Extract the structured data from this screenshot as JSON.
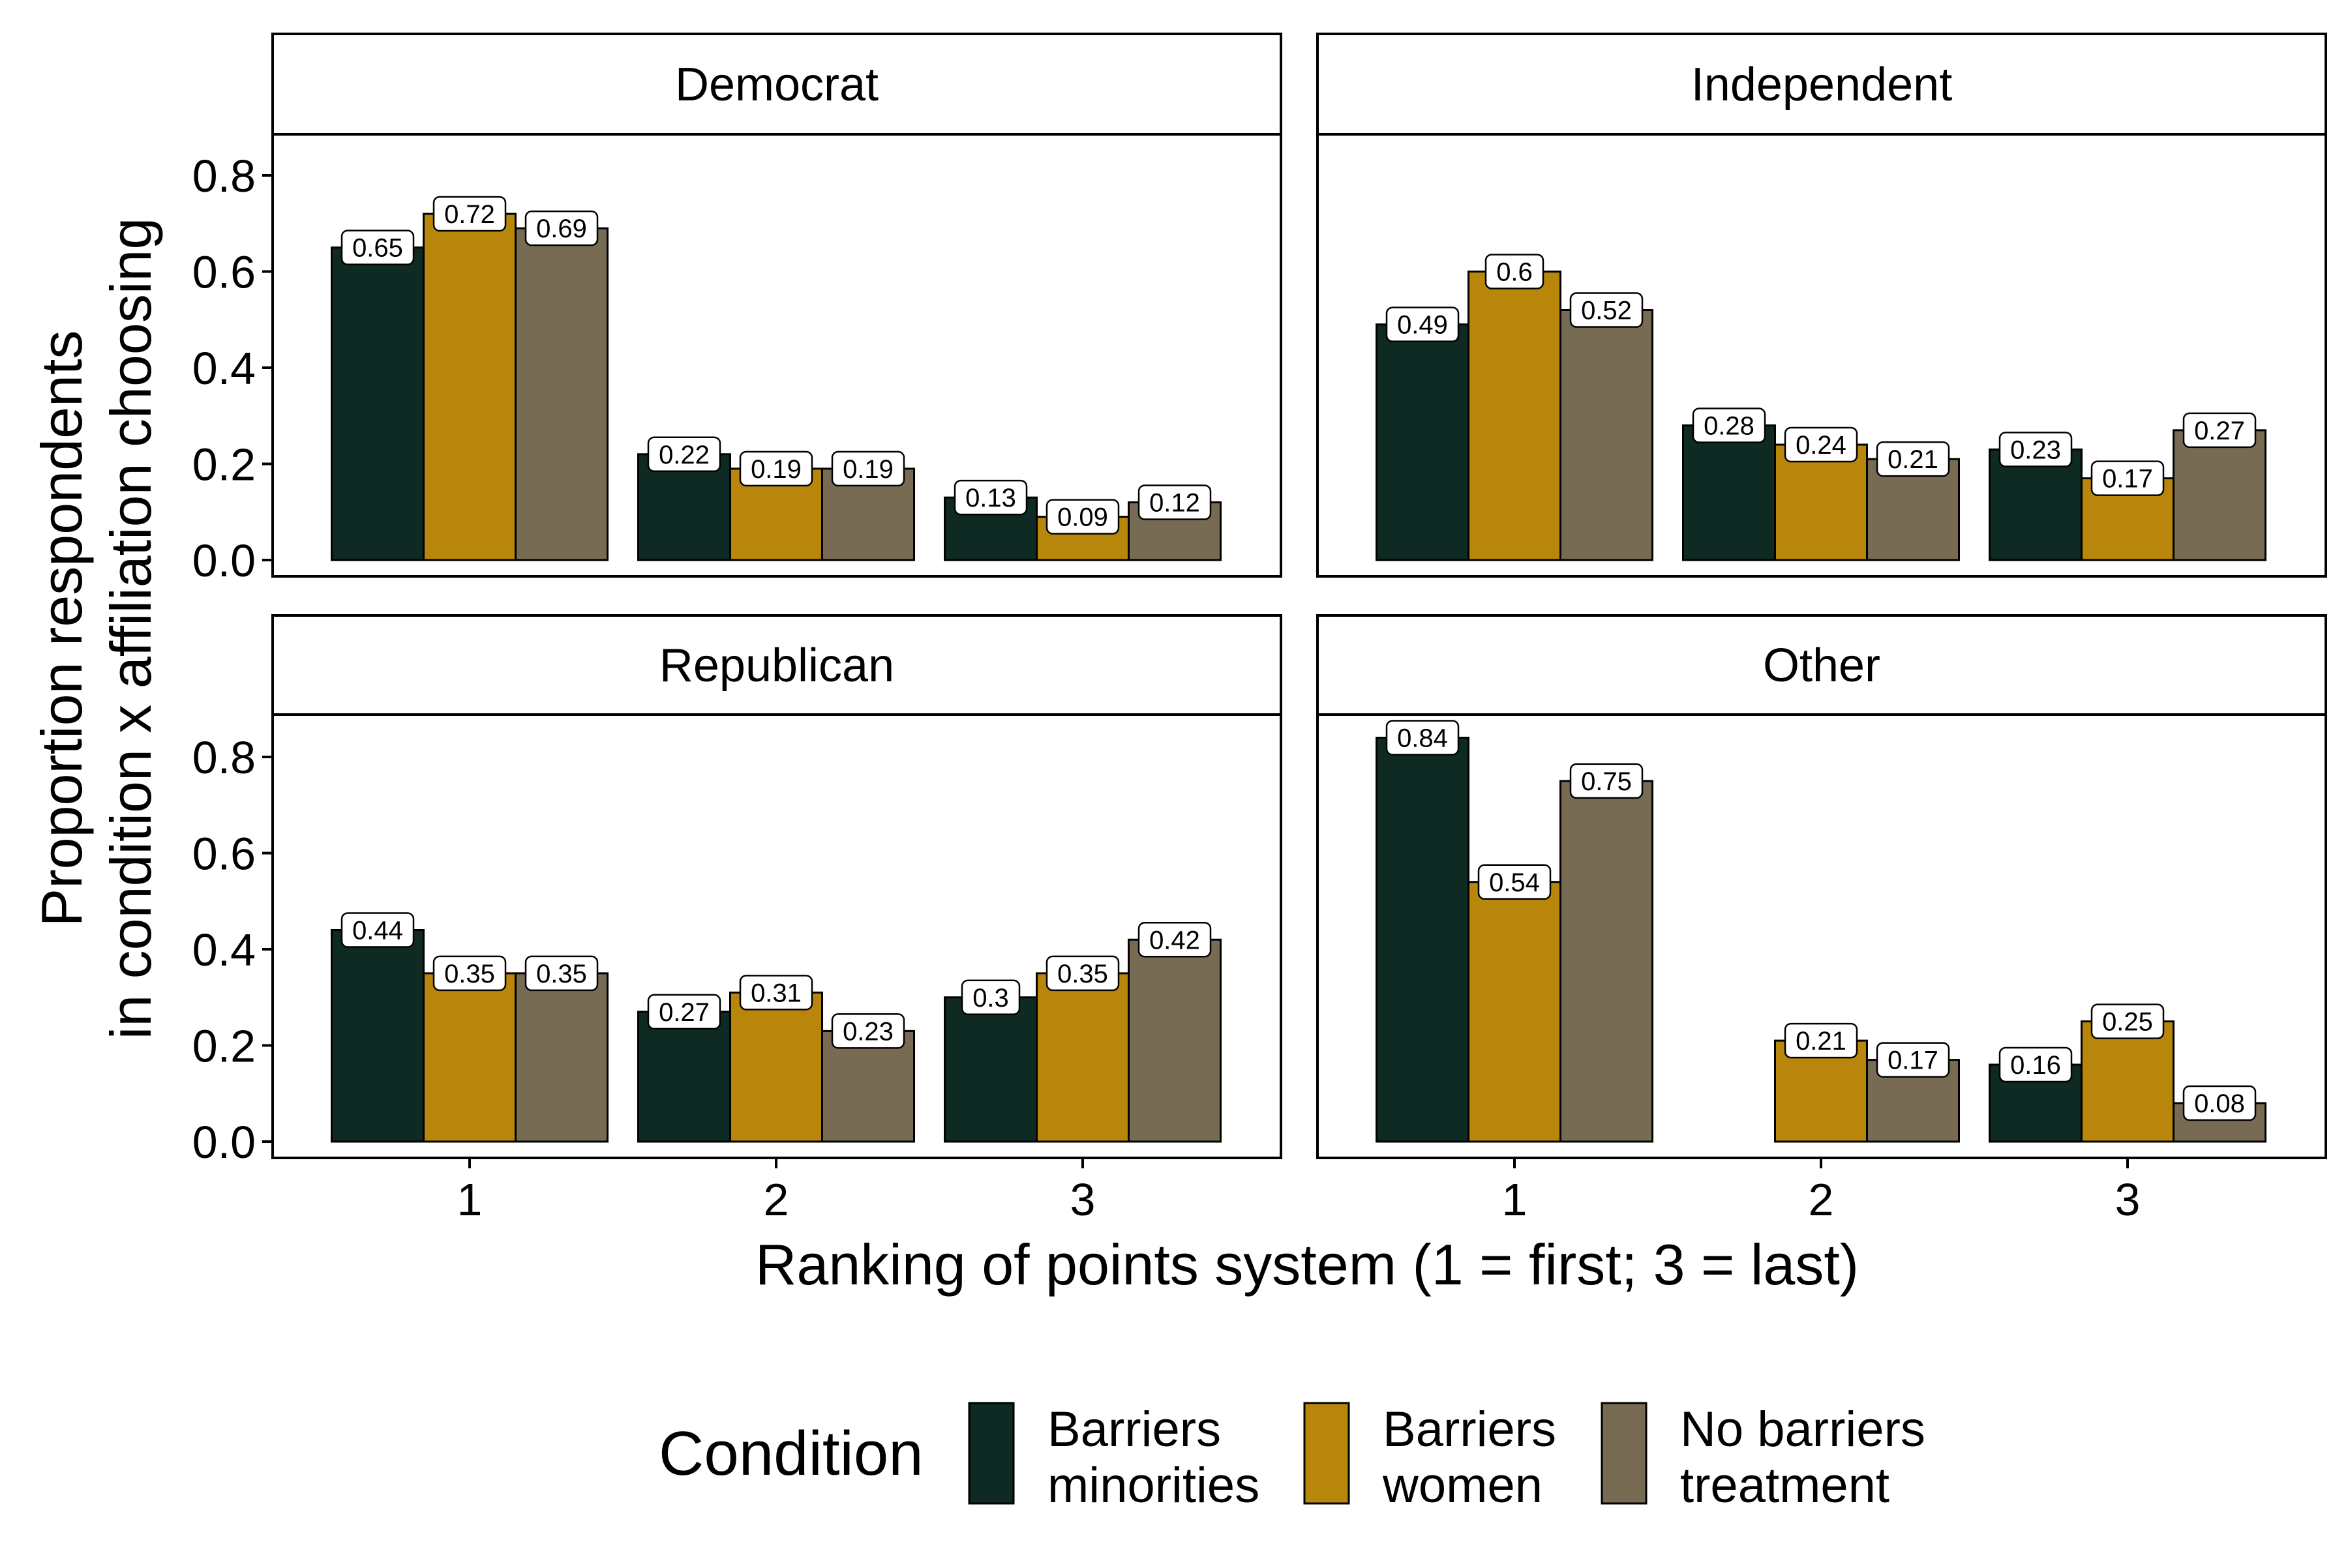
{
  "chart_data": {
    "type": "bar",
    "xlabel": "Ranking of points system (1 = first; 3 = last)",
    "ylabel_lines": [
      "Proportion respondents",
      "in condition x affiliation choosing"
    ],
    "ylim": [
      0,
      0.9
    ],
    "yticks": [
      0.0,
      0.2,
      0.4,
      0.6,
      0.8
    ],
    "ytick_labels": [
      "0.0",
      "0.2",
      "0.4",
      "0.6",
      "0.8"
    ],
    "categories": [
      "1",
      "2",
      "3"
    ],
    "grid": false,
    "legend": {
      "title": "Condition",
      "position": "bottom",
      "entries": [
        {
          "key": "barriers_minorities",
          "lines": [
            "Barriers",
            "minorities"
          ],
          "color": "#0f2a23"
        },
        {
          "key": "barriers_women",
          "lines": [
            "Barriers",
            "women"
          ],
          "color": "#b8860b"
        },
        {
          "key": "no_barriers",
          "lines": [
            "No barriers",
            "treatment"
          ],
          "color": "#786b54"
        }
      ]
    },
    "panels": [
      {
        "title": "Democrat",
        "series": [
          {
            "key": "barriers_minorities",
            "values": [
              0.65,
              0.22,
              0.13
            ],
            "labels": [
              "0.65",
              "0.22",
              "0.13"
            ]
          },
          {
            "key": "barriers_women",
            "values": [
              0.72,
              0.19,
              0.09
            ],
            "labels": [
              "0.72",
              "0.19",
              "0.09"
            ]
          },
          {
            "key": "no_barriers",
            "values": [
              0.69,
              0.19,
              0.12
            ],
            "labels": [
              "0.69",
              "0.19",
              "0.12"
            ]
          }
        ]
      },
      {
        "title": "Independent",
        "series": [
          {
            "key": "barriers_minorities",
            "values": [
              0.49,
              0.28,
              0.23
            ],
            "labels": [
              "0.49",
              "0.28",
              "0.23"
            ]
          },
          {
            "key": "barriers_women",
            "values": [
              0.6,
              0.24,
              0.17
            ],
            "labels": [
              "0.6",
              "0.24",
              "0.17"
            ]
          },
          {
            "key": "no_barriers",
            "values": [
              0.52,
              0.21,
              0.27
            ],
            "labels": [
              "0.52",
              "0.21",
              "0.27"
            ]
          }
        ]
      },
      {
        "title": "Republican",
        "series": [
          {
            "key": "barriers_minorities",
            "values": [
              0.44,
              0.27,
              0.3
            ],
            "labels": [
              "0.44",
              "0.27",
              "0.3"
            ]
          },
          {
            "key": "barriers_women",
            "values": [
              0.35,
              0.31,
              0.35
            ],
            "labels": [
              "0.35",
              "0.31",
              "0.35"
            ]
          },
          {
            "key": "no_barriers",
            "values": [
              0.35,
              0.23,
              0.42
            ],
            "labels": [
              "0.35",
              "0.23",
              "0.42"
            ]
          }
        ]
      },
      {
        "title": "Other",
        "series": [
          {
            "key": "barriers_minorities",
            "values": [
              0.84,
              null,
              0.16
            ],
            "labels": [
              "0.84",
              null,
              "0.16"
            ]
          },
          {
            "key": "barriers_women",
            "values": [
              0.54,
              0.21,
              0.25
            ],
            "labels": [
              "0.54",
              "0.21",
              "0.25"
            ]
          },
          {
            "key": "no_barriers",
            "values": [
              0.75,
              0.17,
              0.08
            ],
            "labels": [
              "0.75",
              "0.17",
              "0.08"
            ]
          }
        ]
      }
    ]
  }
}
